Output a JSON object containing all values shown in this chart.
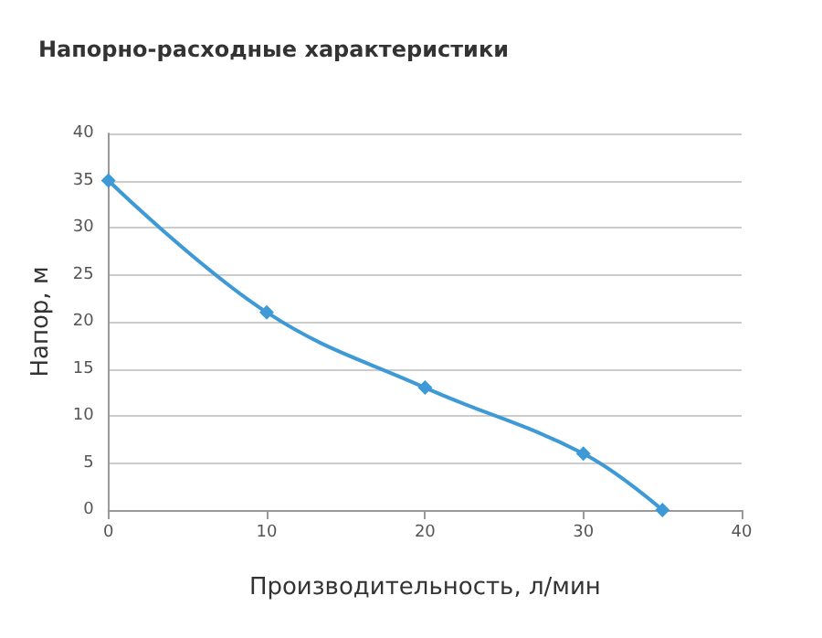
{
  "chart_data": {
    "type": "line",
    "title": "Напорно-расходные характеристики",
    "xlabel": "Производительность, л/мин",
    "ylabel": "Напор, м",
    "x": [
      0,
      10,
      20,
      30,
      35
    ],
    "series": [
      {
        "color": "#3d9ad6",
        "values": [
          35,
          21,
          13,
          6,
          0
        ]
      }
    ],
    "xlim": [
      0,
      40
    ],
    "xticks": [
      0,
      10,
      20,
      30,
      40
    ],
    "ylim": [
      0,
      40
    ],
    "yticks": [
      0,
      5,
      10,
      15,
      20,
      25,
      30,
      35,
      40
    ],
    "grid": "y",
    "marker": "diamond",
    "line_style": "solid"
  }
}
